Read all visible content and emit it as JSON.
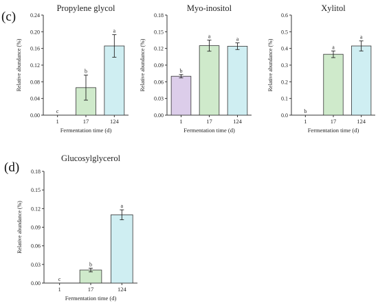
{
  "panels": [
    {
      "label": "(c)"
    },
    {
      "label": "(d)"
    }
  ],
  "colors": {
    "day1": "#dccdea",
    "day17": "#cfeacb",
    "day124": "#cfeef2",
    "stroke": "#333333"
  },
  "chart_data": [
    {
      "type": "bar",
      "title": "Propylene glycol",
      "xlabel": "Fermentation time (d)",
      "ylabel": "Relative abundance (%)",
      "categories": [
        "1",
        "17",
        "124"
      ],
      "values": [
        0.0,
        0.066,
        0.166
      ],
      "errors": [
        0.0,
        0.03,
        0.027
      ],
      "letters": [
        "c",
        "b",
        "a"
      ],
      "ylim": [
        0,
        0.24
      ],
      "yticks": [
        "0.00",
        "0.04",
        "0.08",
        "0.12",
        "0.16",
        "0.20",
        "0.24"
      ]
    },
    {
      "type": "bar",
      "title": "Myo-inositol",
      "xlabel": "Fermentation time (d)",
      "ylabel": "Relative abundance (%)",
      "categories": [
        "1",
        "17",
        "124"
      ],
      "values": [
        0.07,
        0.125,
        0.124
      ],
      "errors": [
        0.003,
        0.01,
        0.006
      ],
      "letters": [
        "b",
        "a",
        "a"
      ],
      "ylim": [
        0,
        0.18
      ],
      "yticks": [
        "0.00",
        "0.03",
        "0.06",
        "0.09",
        "0.12",
        "0.15",
        "0.18"
      ]
    },
    {
      "type": "bar",
      "title": "Xylitol",
      "xlabel": "Fermentation time (d)",
      "ylabel": "Relative abundance (%)",
      "categories": [
        "1",
        "17",
        "124"
      ],
      "values": [
        0.0,
        0.365,
        0.415
      ],
      "errors": [
        0.0,
        0.02,
        0.03
      ],
      "letters": [
        "b",
        "a",
        "a"
      ],
      "ylim": [
        0,
        0.6
      ],
      "yticks": [
        "0.0",
        "0.1",
        "0.2",
        "0.3",
        "0.4",
        "0.5",
        "0.6"
      ]
    },
    {
      "type": "bar",
      "title": "Glucosylglycerol",
      "xlabel": "Fermentation time (d)",
      "ylabel": "Relative abundance (%)",
      "categories": [
        "1",
        "17",
        "124"
      ],
      "values": [
        0.0,
        0.021,
        0.11
      ],
      "errors": [
        0.0,
        0.003,
        0.008
      ],
      "letters": [
        "c",
        "b",
        "a"
      ],
      "ylim": [
        0,
        0.18
      ],
      "yticks": [
        "0.00",
        "0.03",
        "0.06",
        "0.09",
        "0.12",
        "0.15",
        "0.18"
      ]
    }
  ]
}
